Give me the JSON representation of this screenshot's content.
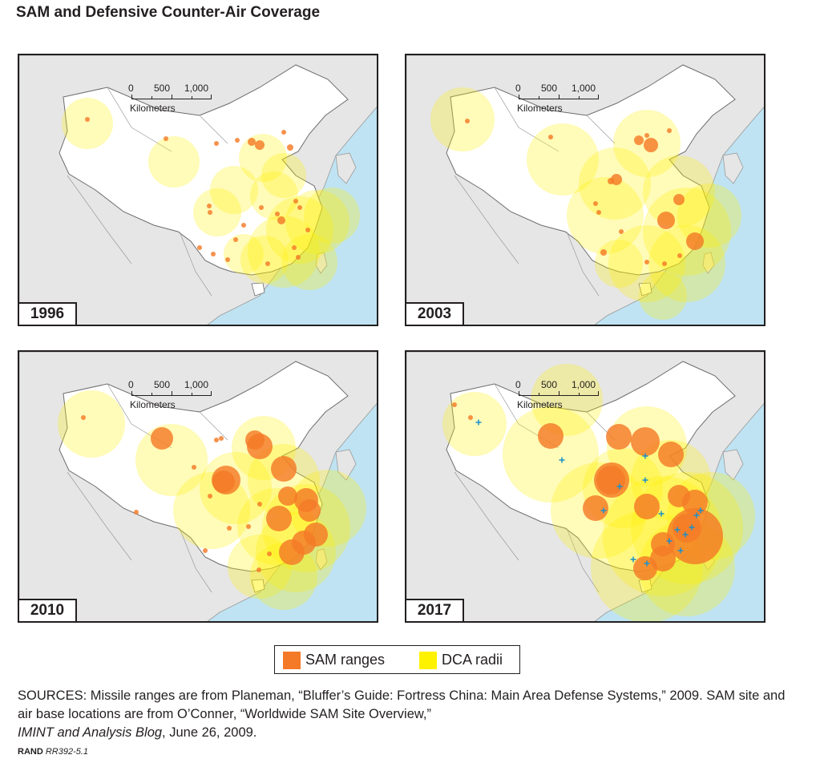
{
  "title": "SAM and Defensive Counter-Air Coverage",
  "scale_bar": {
    "labels": [
      "0",
      "500",
      "1,000"
    ],
    "unit": "Kilometers"
  },
  "panels": [
    {
      "year": "1996"
    },
    {
      "year": "2003"
    },
    {
      "year": "2010"
    },
    {
      "year": "2017"
    }
  ],
  "legend": {
    "items": [
      {
        "label": "SAM ranges",
        "color": "#f47a27"
      },
      {
        "label": "DCA radii",
        "color": "#fff200"
      }
    ]
  },
  "sources": {
    "prefix": "SOURCES: Missile ranges are from Planeman, “Bluffer’s Guide: Fortress China: Main Area Defense Systems,” 2009. SAM site and air base locations are from O’Conner, “Worldwide SAM Site Overview,”",
    "italic": "IMINT and Analysis Blog",
    "suffix": ", June 26, 2009."
  },
  "credit": {
    "org": "RAND",
    "id": "RR392-5.1"
  },
  "colors": {
    "ocean": "#bfe3f2",
    "land_other": "#e6e6e6",
    "china": "#ffffff",
    "sam": "#f47a27",
    "dca": "#fff200",
    "airbase": "#1a8fc9"
  }
}
